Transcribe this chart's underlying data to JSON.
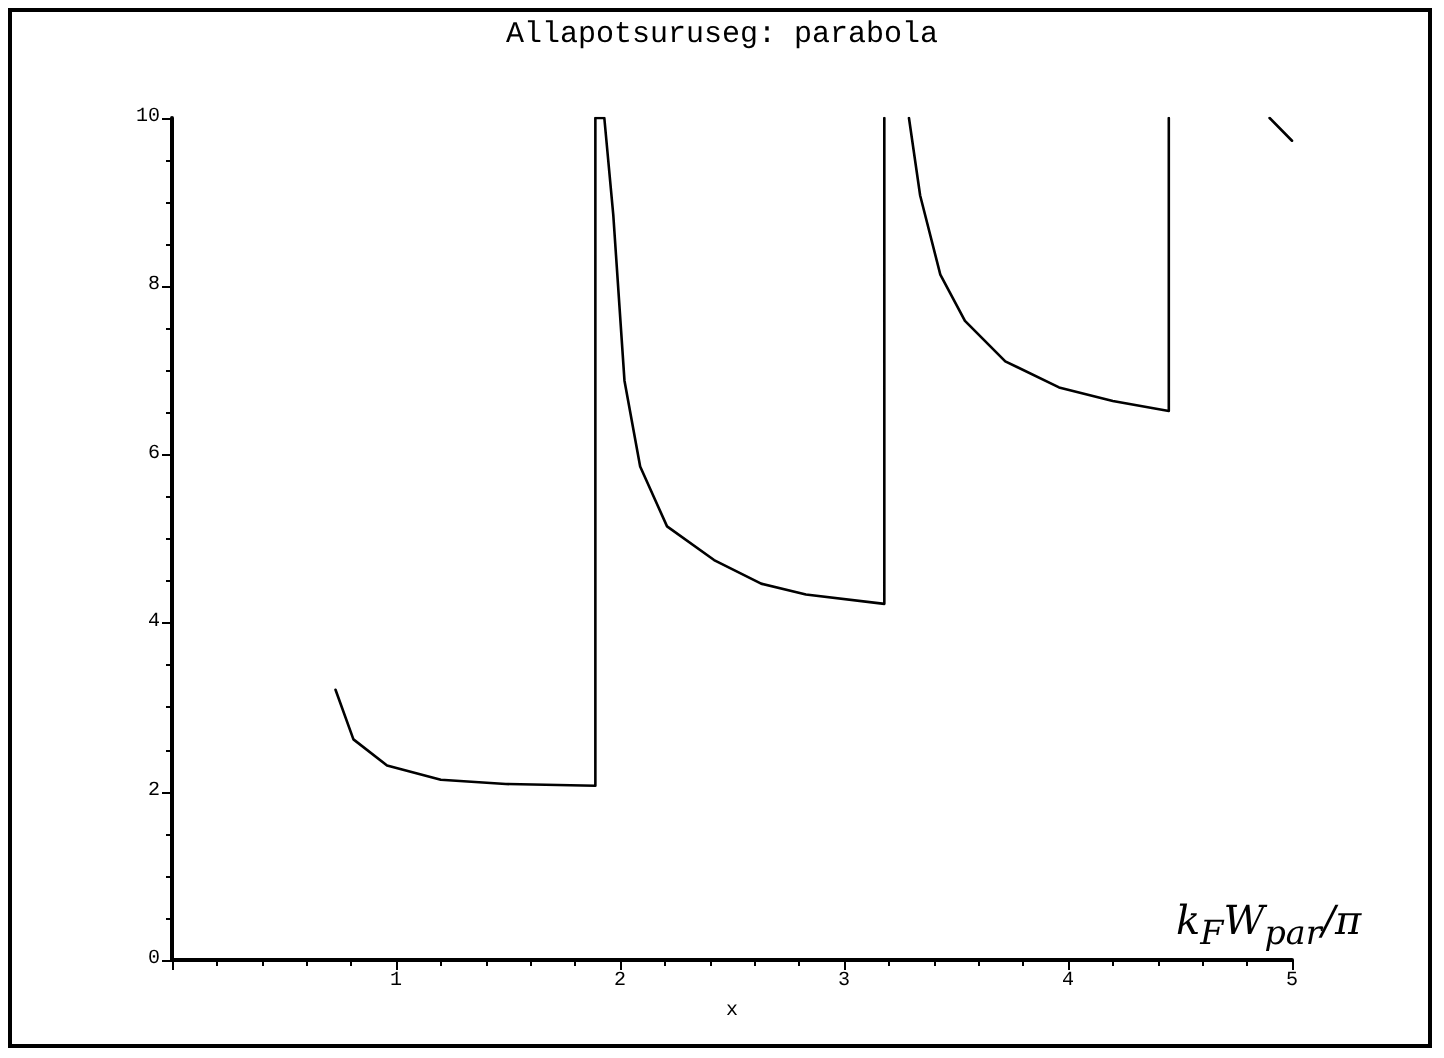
{
  "chart_data": {
    "type": "line",
    "title": "Allapotsuruseg: parabola",
    "xlabel": "x",
    "annotations": [
      "k$_{F}$W$_{par}$/π"
    ],
    "x": [
      0.73,
      0.81,
      0.96,
      1.2,
      1.49,
      1.89,
      1.89,
      1.93,
      1.97,
      2.02,
      2.09,
      2.21,
      2.42,
      2.63,
      2.83,
      3.18,
      3.18,
      3.23,
      3.29,
      3.34,
      3.43,
      3.54,
      3.72,
      3.96,
      4.2,
      4.45,
      4.45,
      4.7,
      4.9,
      5.0
    ],
    "series": [
      {
        "color": "#000000",
        "values": [
          3.21,
          2.62,
          2.31,
          2.14,
          2.09,
          2.07,
          10,
          10,
          8.85,
          6.88,
          5.86,
          5.15,
          4.75,
          4.47,
          4.34,
          4.23,
          10,
          null,
          10,
          9.08,
          8.14,
          7.59,
          7.11,
          6.8,
          6.64,
          6.52,
          10,
          null,
          10,
          9.73
        ]
      }
    ],
    "xlim": [
      0,
      5
    ],
    "xticks": [
      {
        "value": 0,
        "label": null
      },
      1,
      2,
      3,
      4,
      5
    ],
    "ylim": [
      0,
      10
    ],
    "yticks": [
      0,
      2,
      4,
      6,
      8,
      10
    ],
    "grid": false,
    "marker": "none",
    "line_style": "solid"
  }
}
